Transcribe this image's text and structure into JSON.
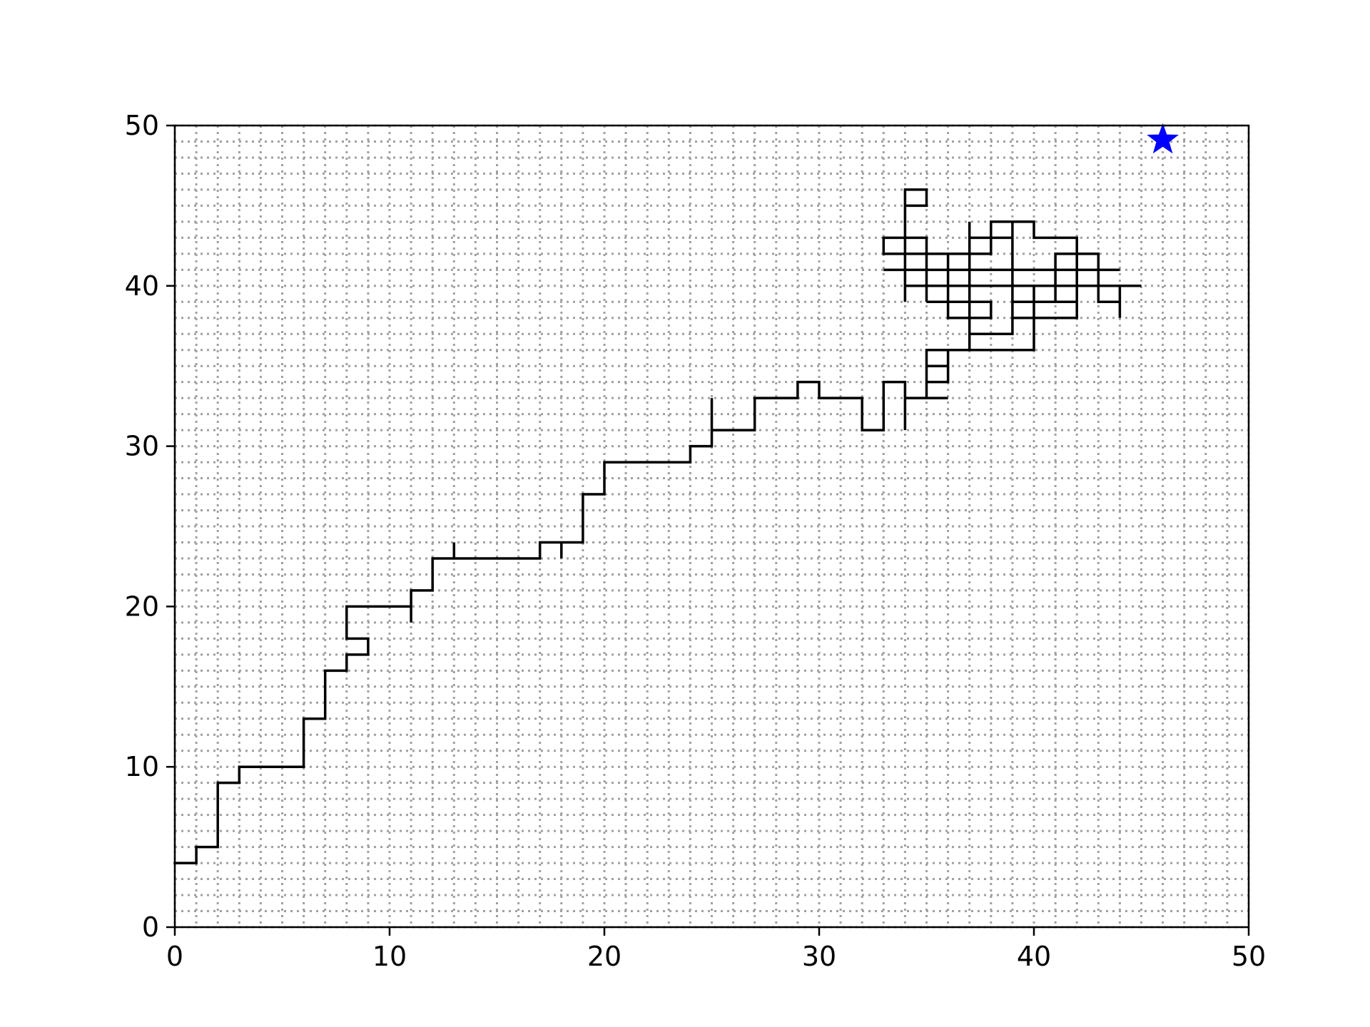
{
  "chart_data": {
    "type": "line",
    "title": "",
    "xlabel": "",
    "ylabel": "",
    "xlim": [
      0,
      50
    ],
    "ylim": [
      0,
      50
    ],
    "grid": {
      "major": true,
      "minor": true,
      "style": "dotted",
      "spacing": 1
    },
    "x_ticks": [
      0,
      10,
      20,
      30,
      40,
      50
    ],
    "y_ticks": [
      0,
      10,
      20,
      30,
      40,
      50
    ],
    "colors": {
      "path": "#000000",
      "goal": "#0000ff",
      "grid": "#a0a0a0"
    },
    "series": [
      {
        "points": [
          [
            0,
            4
          ],
          [
            1,
            4
          ],
          [
            1,
            5
          ],
          [
            2,
            5
          ],
          [
            2,
            9
          ],
          [
            3,
            9
          ],
          [
            3,
            10
          ],
          [
            6,
            10
          ],
          [
            6,
            13
          ],
          [
            7,
            13
          ],
          [
            7,
            16
          ],
          [
            8,
            16
          ],
          [
            8,
            17
          ],
          [
            9,
            17
          ],
          [
            9,
            18
          ],
          [
            8,
            18
          ],
          [
            8,
            20
          ],
          [
            11,
            20
          ],
          [
            11,
            19
          ],
          [
            11,
            21
          ],
          [
            12,
            21
          ],
          [
            12,
            23
          ],
          [
            13,
            23
          ],
          [
            13,
            24
          ],
          [
            13,
            23
          ],
          [
            17,
            23
          ],
          [
            17,
            24
          ],
          [
            18,
            24
          ],
          [
            18,
            23
          ],
          [
            18,
            24
          ],
          [
            19,
            24
          ],
          [
            19,
            27
          ],
          [
            20,
            27
          ],
          [
            20,
            29
          ],
          [
            24,
            29
          ],
          [
            24,
            30
          ],
          [
            25,
            30
          ],
          [
            25,
            33
          ],
          [
            25,
            31
          ],
          [
            27,
            31
          ],
          [
            27,
            33
          ],
          [
            29,
            33
          ],
          [
            29,
            34
          ],
          [
            30,
            34
          ],
          [
            30,
            33
          ],
          [
            32,
            33
          ],
          [
            32,
            31
          ],
          [
            33,
            31
          ],
          [
            33,
            34
          ],
          [
            34,
            34
          ],
          [
            34,
            31
          ],
          [
            34,
            33
          ],
          [
            36,
            33
          ],
          [
            35,
            33
          ],
          [
            35,
            36
          ],
          [
            37,
            36
          ],
          [
            37,
            37
          ],
          [
            39,
            37
          ],
          [
            39,
            44
          ],
          [
            38,
            44
          ],
          [
            38,
            42
          ],
          [
            33,
            42
          ],
          [
            33,
            43
          ],
          [
            35,
            43
          ],
          [
            35,
            39
          ],
          [
            35,
            40
          ],
          [
            45,
            40
          ],
          [
            44,
            40
          ],
          [
            44,
            38
          ],
          [
            44,
            39
          ],
          [
            43,
            39
          ],
          [
            43,
            42
          ],
          [
            42,
            42
          ],
          [
            42,
            38
          ],
          [
            39,
            38
          ],
          [
            39,
            39
          ],
          [
            42,
            39
          ],
          [
            41,
            39
          ],
          [
            41,
            41
          ],
          [
            33,
            41
          ],
          [
            44,
            41
          ],
          [
            43,
            41
          ],
          [
            41,
            41
          ],
          [
            41,
            42
          ],
          [
            42,
            42
          ],
          [
            42,
            43
          ],
          [
            40,
            43
          ],
          [
            40,
            44
          ],
          [
            39,
            44
          ],
          [
            39,
            43
          ],
          [
            37,
            43
          ],
          [
            37,
            42
          ],
          [
            36,
            42
          ],
          [
            36,
            38
          ],
          [
            38,
            38
          ],
          [
            38,
            39
          ],
          [
            35,
            39
          ],
          [
            36,
            39
          ],
          [
            37,
            39
          ],
          [
            37,
            44
          ],
          [
            37,
            36
          ],
          [
            36,
            36
          ],
          [
            36,
            34
          ],
          [
            35,
            34
          ],
          [
            35,
            35
          ],
          [
            36,
            35
          ],
          [
            36,
            36
          ],
          [
            40,
            36
          ],
          [
            40,
            37
          ],
          [
            40,
            40
          ],
          [
            34,
            40
          ],
          [
            34,
            39
          ],
          [
            34,
            44
          ],
          [
            34,
            46
          ],
          [
            35,
            46
          ],
          [
            35,
            45
          ],
          [
            34,
            45
          ]
        ]
      }
    ],
    "markers": [
      {
        "shape": "star",
        "x": 46,
        "y": 49.1,
        "color": "#0000ff"
      }
    ]
  }
}
